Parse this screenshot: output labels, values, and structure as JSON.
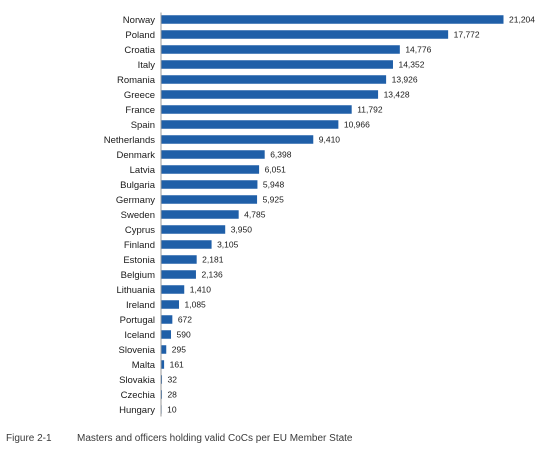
{
  "chart_data": {
    "type": "bar",
    "orientation": "horizontal",
    "categories": [
      "Norway",
      "Poland",
      "Croatia",
      "Italy",
      "Romania",
      "Greece",
      "France",
      "Spain",
      "Netherlands",
      "Denmark",
      "Latvia",
      "Bulgaria",
      "Germany",
      "Sweden",
      "Cyprus",
      "Finland",
      "Estonia",
      "Belgium",
      "Lithuania",
      "Ireland",
      "Portugal",
      "Iceland",
      "Slovenia",
      "Malta",
      "Slovakia",
      "Czechia",
      "Hungary"
    ],
    "values": [
      21204,
      17772,
      14776,
      14352,
      13926,
      13428,
      11792,
      10966,
      9410,
      6398,
      6051,
      5948,
      5925,
      4785,
      3950,
      3105,
      2181,
      2136,
      1410,
      1085,
      672,
      590,
      295,
      161,
      32,
      28,
      10
    ],
    "value_labels": [
      "21,204",
      "17,772",
      "14,776",
      "14,352",
      "13,926",
      "13,428",
      "11,792",
      "10,966",
      "9,410",
      "6,398",
      "6,051",
      "5,948",
      "5,925",
      "4,785",
      "3,950",
      "3,105",
      "2,181",
      "2,136",
      "1,410",
      "1,085",
      "672",
      "590",
      "295",
      "161",
      "32",
      "28",
      "10"
    ],
    "bar_color": "#1f5fa8",
    "xlim": [
      0,
      21204
    ],
    "grid": false,
    "legend": "none"
  },
  "caption": {
    "figure_number": "Figure 2-1",
    "text": "Masters and officers holding valid CoCs per EU Member State"
  }
}
